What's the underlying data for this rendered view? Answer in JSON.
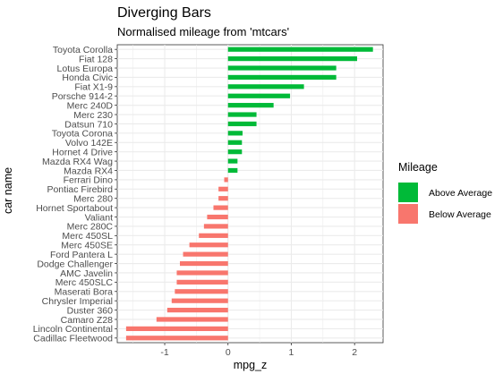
{
  "chart_data": {
    "type": "bar",
    "orientation": "horizontal",
    "title": "Diverging Bars",
    "subtitle": "Normalised mileage from 'mtcars'",
    "xlabel": "mpg_z",
    "ylabel": "car name",
    "xlim": [
      -1.75,
      2.45
    ],
    "x_ticks": [
      -1,
      0,
      1,
      2
    ],
    "grid": true,
    "legend": {
      "title": "Mileage",
      "position": "right",
      "entries": [
        {
          "label": "Above Average",
          "color": "#00ba38"
        },
        {
          "label": "Below Average",
          "color": "#f8766d"
        }
      ]
    },
    "categories": [
      "Toyota Corolla",
      "Fiat 128",
      "Lotus Europa",
      "Honda Civic",
      "Fiat X1-9",
      "Porsche 914-2",
      "Merc 240D",
      "Merc 230",
      "Datsun 710",
      "Toyota Corona",
      "Volvo 142E",
      "Hornet 4 Drive",
      "Mazda RX4 Wag",
      "Mazda RX4",
      "Ferrari Dino",
      "Pontiac Firebird",
      "Merc 280",
      "Hornet Sportabout",
      "Valiant",
      "Merc 280C",
      "Merc 450SL",
      "Merc 450SE",
      "Ford Pantera L",
      "Dodge Challenger",
      "AMC Javelin",
      "Merc 450SLC",
      "Maserati Bora",
      "Chrysler Imperial",
      "Duster 360",
      "Camaro Z28",
      "Lincoln Continental",
      "Cadillac Fleetwood"
    ],
    "values": [
      2.29,
      2.04,
      1.71,
      1.71,
      1.2,
      0.98,
      0.72,
      0.45,
      0.45,
      0.23,
      0.22,
      0.22,
      0.15,
      0.15,
      -0.06,
      -0.15,
      -0.15,
      -0.23,
      -0.33,
      -0.38,
      -0.46,
      -0.61,
      -0.71,
      -0.76,
      -0.81,
      -0.81,
      -0.84,
      -0.89,
      -0.96,
      -1.13,
      -1.61,
      -1.61
    ]
  }
}
